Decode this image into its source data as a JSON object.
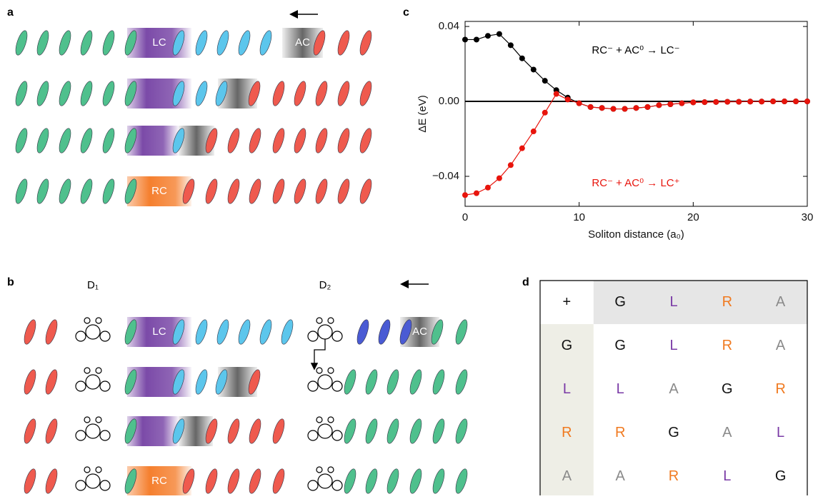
{
  "figure": {
    "panel_labels": [
      "a",
      "b",
      "c",
      "d"
    ],
    "a_boxes": [
      "LC",
      "AC",
      "RC"
    ],
    "b_boxes": [
      "LC",
      "AC",
      "RC"
    ],
    "b_sites": [
      "D₁",
      "D₂"
    ]
  },
  "chart_data": {
    "type": "line",
    "x_label": "Soliton distance (a₀)",
    "y_label": "ΔE (eV)",
    "x": [
      0,
      1,
      2,
      3,
      4,
      5,
      6,
      7,
      8,
      9,
      10,
      11,
      12,
      13,
      14,
      15,
      16,
      17,
      18,
      19,
      20,
      21,
      22,
      23,
      24,
      25,
      26,
      27,
      28,
      29,
      30
    ],
    "series": [
      {
        "name": "RC⁻ + AC⁰ → LC⁻",
        "color": "#000000",
        "values": [
          0.033,
          0.033,
          0.035,
          0.036,
          0.03,
          0.023,
          0.017,
          0.011,
          0.006,
          0.002,
          -0.001,
          -0.003,
          -0.0035,
          -0.004,
          -0.004,
          -0.0035,
          -0.003,
          -0.002,
          -0.0015,
          -0.001,
          -0.0005,
          -0.0004,
          -0.0003,
          -0.0002,
          -0.0002,
          -0.0001,
          -0.0001,
          0,
          0,
          0,
          0
        ]
      },
      {
        "name": "RC⁻ + AC⁰ → LC⁺",
        "color": "#e8140c",
        "values": [
          -0.05,
          -0.049,
          -0.046,
          -0.041,
          -0.034,
          -0.025,
          -0.016,
          -0.006,
          0.004,
          0.001,
          -0.001,
          -0.003,
          -0.0035,
          -0.004,
          -0.004,
          -0.0035,
          -0.003,
          -0.002,
          -0.0015,
          -0.001,
          -0.0005,
          -0.0004,
          -0.0003,
          -0.0002,
          -0.0002,
          -0.0001,
          -0.0001,
          0,
          0,
          0,
          0
        ]
      }
    ],
    "xlim": [
      0,
      30
    ],
    "ylim": [
      -0.056,
      0.0427
    ],
    "xticks": [
      0,
      10,
      20,
      30
    ],
    "yticks": [
      0.04,
      {
        "value": 0,
        "label": "0.00"
      },
      {
        "value": -0.04,
        "label": "−0.04"
      }
    ],
    "zero_line": true
  },
  "table": {
    "rows": [
      [
        "+",
        "G",
        "L",
        "R",
        "A"
      ],
      [
        "G",
        "G",
        "L",
        "R",
        "A"
      ],
      [
        "L",
        "L",
        "A",
        "G",
        "R"
      ],
      [
        "R",
        "R",
        "G",
        "A",
        "L"
      ],
      [
        "A",
        "A",
        "R",
        "L",
        "G"
      ]
    ],
    "colors": {
      "+": "#111111",
      "G": "#111111",
      "L": "#7a3aa6",
      "R": "#f07a20",
      "A": "#8a8a8a"
    }
  }
}
